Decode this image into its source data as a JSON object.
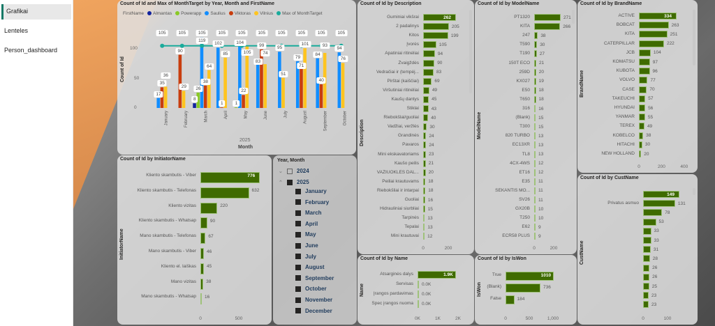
{
  "sidebar": {
    "items": [
      {
        "label": "Grafikai",
        "active": true
      },
      {
        "label": "Lenteles"
      },
      {
        "label": "Person_dashboard"
      }
    ]
  },
  "column_chart": {
    "title": "Count of Id and Max of MonthTarget by Year, Month and FirstName",
    "legend_title": "FirstName",
    "ylabel": "Count of Id",
    "xlabel": "Month",
    "year": "2025",
    "yticks": [
      0,
      50,
      100
    ],
    "ylim": [
      0,
      125
    ],
    "series": [
      {
        "name": "Almantas",
        "color": "#12239e"
      },
      {
        "name": "Powerapp",
        "color": "#8ac926"
      },
      {
        "name": "Saulius",
        "color": "#118dff"
      },
      {
        "name": "Viktoras",
        "color": "#c83d0e"
      },
      {
        "name": "Vilnius",
        "color": "#ffc41f"
      }
    ],
    "line_series": {
      "name": "Max of MonthTarget",
      "color": "#1aab9b"
    },
    "months": [
      {
        "month": "January",
        "values": [
          null,
          null,
          17,
          35,
          36
        ],
        "target": 105
      },
      {
        "month": "February",
        "values": [
          null,
          null,
          null,
          90,
          29
        ],
        "target": 105
      },
      {
        "month": "March",
        "values": [
          8,
          26,
          119,
          38,
          64
        ],
        "target": 105
      },
      {
        "month": "April",
        "values": [
          null,
          null,
          102,
          1,
          85
        ],
        "target": 105
      },
      {
        "month": "May",
        "values": [
          null,
          1,
          104,
          22,
          105
        ],
        "target": 105
      },
      {
        "month": "June",
        "values": [
          null,
          null,
          83,
          99,
          74
        ],
        "target": 105
      },
      {
        "month": "July",
        "values": [
          null,
          null,
          95,
          null,
          51
        ],
        "target": 105
      },
      {
        "month": "August",
        "values": [
          null,
          null,
          79,
          71,
          101
        ],
        "target": 105
      },
      {
        "month": "September",
        "values": [
          null,
          null,
          84,
          40,
          93
        ],
        "target": 105
      },
      {
        "month": "October",
        "values": [
          null,
          null,
          94,
          null,
          76
        ],
        "target": 105
      }
    ]
  },
  "bar_color": "#3f6b00",
  "description_chart": {
    "title": "Count of Id by Description",
    "ylabel": "Description",
    "ticks": [
      "0",
      "200"
    ],
    "categories": [
      "Guminiai vikšrai",
      "2 padalinys",
      "Kitos",
      "Įvorės",
      "Apatiniai ritinėliai",
      "Žvaigždės",
      "Vedračiai ir (tempėj...",
      "Pirštai (kaiščiai)",
      "Viršutiniai ritinėliai",
      "Kaušų dantys",
      "Stiklai",
      "Riebokšlai/guoliai",
      "Vadžiai, veržlės",
      "Grandinės",
      "Pavaros",
      "Mini ekskavatoriams",
      "Kaušo peilis",
      "VAŽIUOKLĖS DAL...",
      "Peiliai krautuvams",
      "Riebokšliai ir intarpai",
      "Guoliai",
      "Hidrauliniai siurbliai",
      "Tarpinės",
      "Tepalai",
      "Mini krautuvai"
    ],
    "values": [
      262,
      205,
      199,
      105,
      94,
      90,
      83,
      69,
      49,
      45,
      43,
      40,
      30,
      24,
      24,
      23,
      21,
      20,
      18,
      18,
      16,
      15,
      13,
      13,
      12
    ]
  },
  "model_chart": {
    "title": "Count of Id by ModelName",
    "ylabel": "ModelName",
    "ticks": [
      "0",
      "200"
    ],
    "categories": [
      "PT1320",
      "KITA",
      "247",
      "T590",
      "T190",
      "150T ECO",
      "259D",
      "KX027",
      "E50",
      "T650",
      "316",
      "(Blank)",
      "T300",
      "820 TURBO",
      "EC13XR",
      "TL8",
      "4CX-4WS",
      "ET16",
      "E35",
      "SEKANTIS MO...",
      "SV26",
      "GX20B",
      "T250",
      "E62",
      "ECR58 PLUS"
    ],
    "values": [
      271,
      266,
      38,
      30,
      27,
      21,
      20,
      19,
      18,
      18,
      16,
      15,
      15,
      13,
      13,
      13,
      12,
      12,
      11,
      11,
      11,
      10,
      10,
      9,
      9
    ]
  },
  "brand_chart": {
    "title": "Count of Id by BrandName",
    "ylabel": "BrandName",
    "ticks": [
      "0",
      "200",
      "400"
    ],
    "categories": [
      "ACTIVE",
      "BOBCAT",
      "KITA",
      "CATERPILLAR",
      "JCB",
      "KOMATSU",
      "KUBOTA",
      "VOLVO",
      "CASE",
      "TAKEUCHI",
      "HYUNDAI",
      "YANMAR",
      "TEREX",
      "KOBELCO",
      "HITACHI",
      "NEW HOLLAND"
    ],
    "values": [
      334,
      263,
      251,
      222,
      104,
      97,
      96,
      77,
      70,
      57,
      56,
      55,
      49,
      38,
      30,
      20
    ]
  },
  "cust_chart": {
    "title": "Count of Id by CustName",
    "ylabel": "CustName",
    "ticks": [
      "0",
      "100"
    ],
    "categories": [
      "",
      "Privatus asmuo",
      "",
      "",
      "",
      "",
      "",
      "",
      "",
      "",
      "",
      "",
      ""
    ],
    "values": [
      149,
      131,
      78,
      53,
      33,
      33,
      31,
      28,
      26,
      26,
      25,
      23,
      23
    ]
  },
  "initiator_chart": {
    "title": "Count of Id by InitiatorName",
    "ylabel": "InitiatorName",
    "ticks": [
      "0",
      "500"
    ],
    "categories": [
      "Kliento skambutis - Viber",
      "Kliento skambutis - Telefonas",
      "Kliento vizitas",
      "Kliento skambutis - Whatsap",
      "Mano skambutis - Telefonas",
      "Mano skambutis - Viber",
      "Kliento el. laiškas",
      "Mano vizitas",
      "Mano skambutis - Whatsap"
    ],
    "values": [
      776,
      632,
      220,
      90,
      67,
      46,
      45,
      38,
      16
    ]
  },
  "name_chart": {
    "title": "Count of Id by Name",
    "ylabel": "Name",
    "ticks": [
      "0K",
      "1K",
      "2K"
    ],
    "categories": [
      "Atsarginės dalys",
      "Servisas",
      "Įrangos pardavimas",
      "Spec įrangos nuoma"
    ],
    "values": [
      1900,
      0,
      0,
      0
    ],
    "labels": [
      "1.9K",
      "0.0K",
      "0.0K",
      "0.0K"
    ]
  },
  "iswon_chart": {
    "title": "Count of Id by IsWon",
    "ylabel": "IsWon",
    "ticks": [
      "0",
      "500",
      "1,000"
    ],
    "categories": [
      "True",
      "(Blank)",
      "False"
    ],
    "values": [
      1010,
      736,
      184
    ]
  },
  "slicer": {
    "title": "Year, Month",
    "years": [
      {
        "label": "2024",
        "checked": false,
        "expanded": false
      },
      {
        "label": "2025",
        "checked": true,
        "expanded": true
      }
    ],
    "months": [
      "January",
      "February",
      "March",
      "April",
      "May",
      "June",
      "July",
      "August",
      "September",
      "October",
      "November",
      "December"
    ]
  }
}
